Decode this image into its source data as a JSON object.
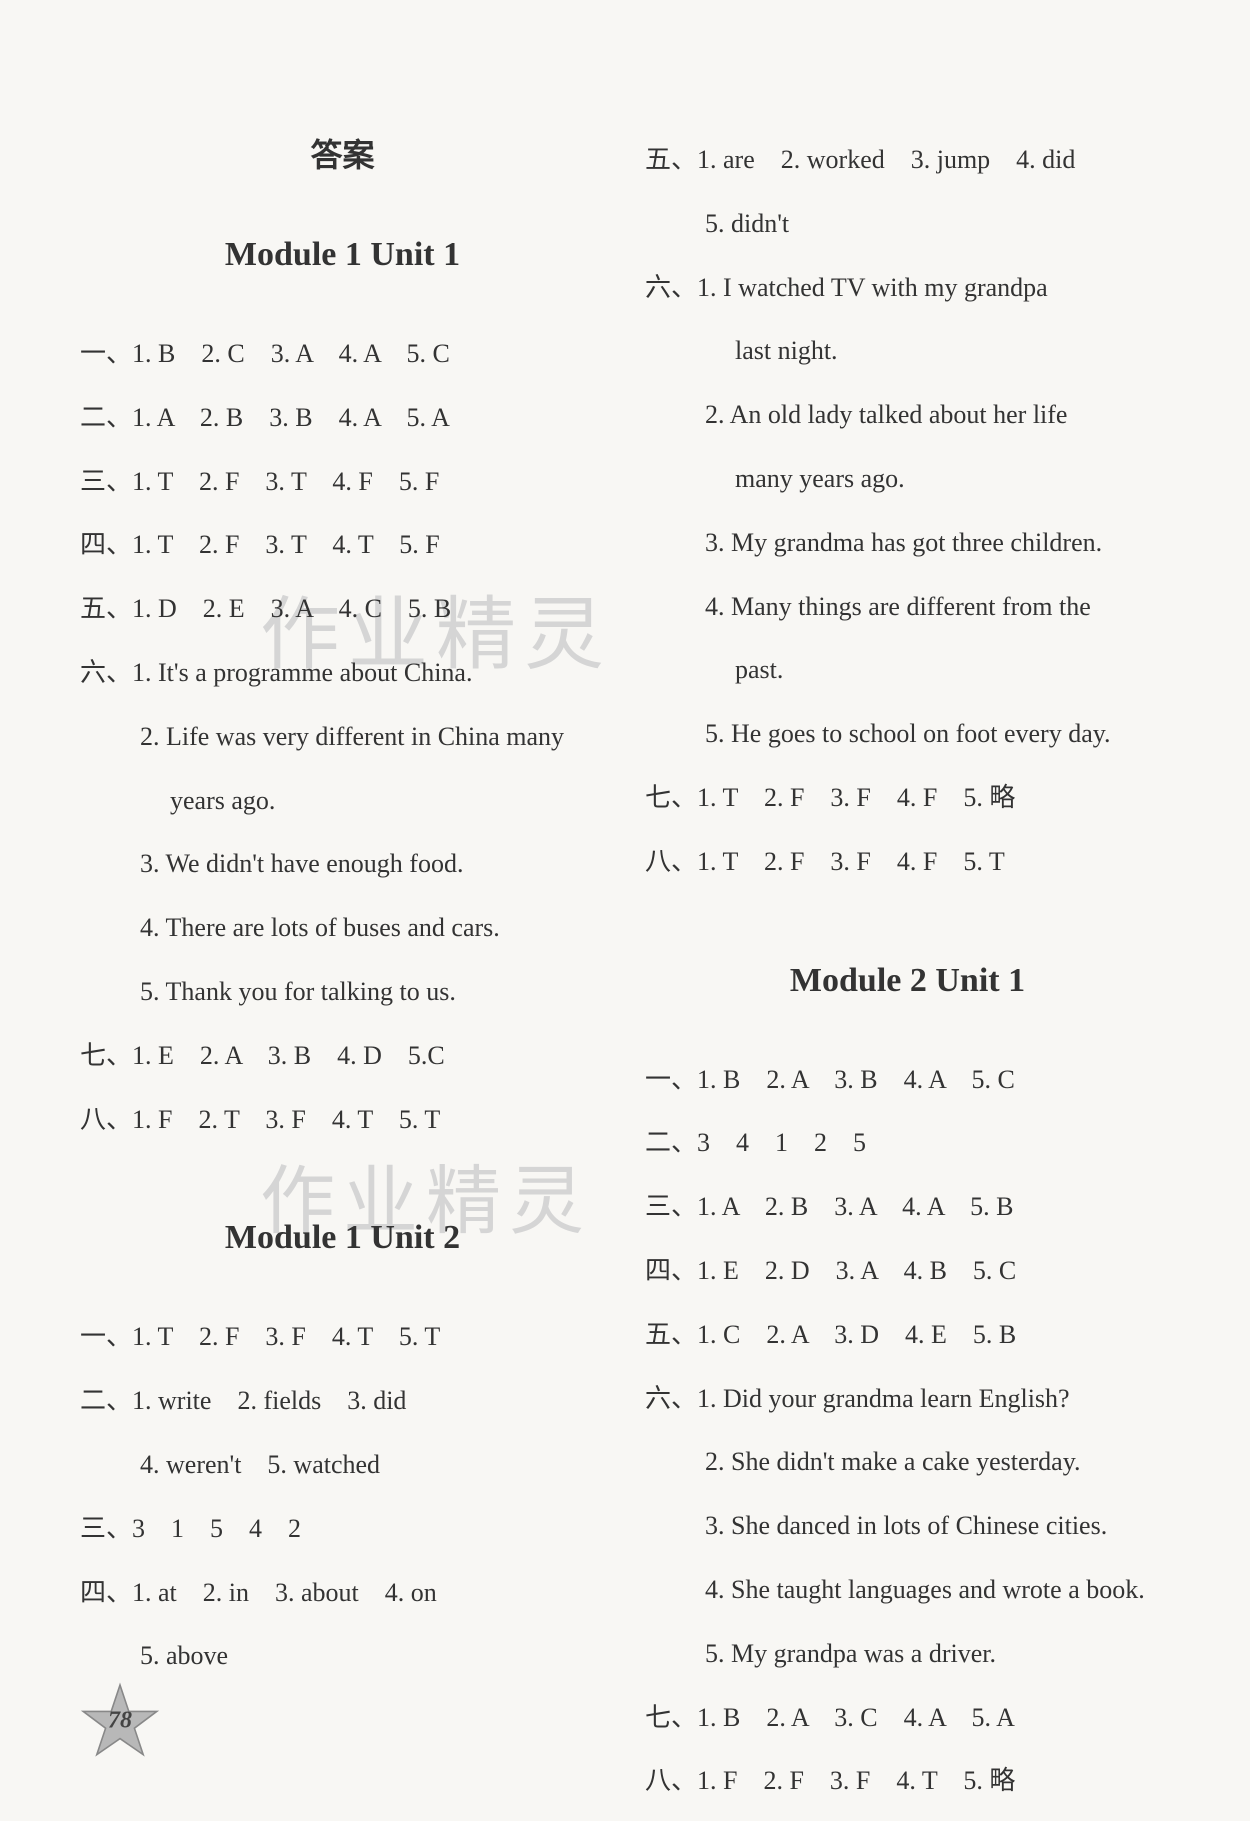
{
  "page_title": "答案",
  "page_number": "78",
  "watermark_text": "作业精灵",
  "modules": {
    "m1u1": {
      "title": "Module 1 Unit 1",
      "rows": [
        {
          "label": "一、",
          "text": "1. B　2. C　3. A　4. A　5. C"
        },
        {
          "label": "二、",
          "text": "1. A　2. B　3. B　4. A　5. A"
        },
        {
          "label": "三、",
          "text": "1. T　2. F　3. T　4. F　5. F"
        },
        {
          "label": "四、",
          "text": "1. T　2. F　3. T　4. T　5. F"
        },
        {
          "label": "五、",
          "text": "1. D　2. E　3. A　4. C　5. B"
        },
        {
          "label": "六、",
          "text": "1. It's a programme about China."
        },
        {
          "label": "",
          "text": "2. Life was very different in China many",
          "indent": true
        },
        {
          "label": "",
          "text": "years ago.",
          "indent": true,
          "deep": true
        },
        {
          "label": "",
          "text": "3. We didn't have enough food.",
          "indent": true
        },
        {
          "label": "",
          "text": "4. There are lots of buses and cars.",
          "indent": true
        },
        {
          "label": "",
          "text": "5. Thank you for talking to us.",
          "indent": true
        },
        {
          "label": "七、",
          "text": "1. E　2. A　3. B　4. D　5.C"
        },
        {
          "label": "八、",
          "text": "1. F　2. T　3. F　4. T　5. T"
        }
      ]
    },
    "m1u2": {
      "title": "Module 1 Unit 2",
      "rows": [
        {
          "label": "一、",
          "text": "1. T　2. F　3. F　4. T　5. T"
        },
        {
          "label": "二、",
          "text": "1. write　2. fields　3. did"
        },
        {
          "label": "",
          "text": "4. weren't　5. watched",
          "indent": true
        },
        {
          "label": "三、",
          "text": "3　1　5　4　2"
        },
        {
          "label": "四、",
          "text": "1. at　2. in　3. about　4. on"
        },
        {
          "label": "",
          "text": "5. above",
          "indent": true
        }
      ]
    },
    "m1u2_right": {
      "rows": [
        {
          "label": "五、",
          "text": "1. are　2. worked　3. jump　4. did"
        },
        {
          "label": "",
          "text": "5. didn't",
          "indent": true
        },
        {
          "label": "六、",
          "text": "1. I watched TV with my grandpa"
        },
        {
          "label": "",
          "text": "last night.",
          "indent": true,
          "deep": true
        },
        {
          "label": "",
          "text": "2. An old lady talked about her life",
          "indent": true
        },
        {
          "label": "",
          "text": "many years ago.",
          "indent": true,
          "deep": true
        },
        {
          "label": "",
          "text": "3. My grandma has got three children.",
          "indent": true
        },
        {
          "label": "",
          "text": "4. Many things are different from the",
          "indent": true
        },
        {
          "label": "",
          "text": "past.",
          "indent": true,
          "deep": true
        },
        {
          "label": "",
          "text": "5. He goes to school on foot every day.",
          "indent": true
        },
        {
          "label": "七、",
          "text": "1. T　2. F　3. F　4. F　5. 略"
        },
        {
          "label": "八、",
          "text": "1. T　2. F　3. F　4. F　5. T"
        }
      ]
    },
    "m2u1": {
      "title": "Module 2 Unit 1",
      "rows": [
        {
          "label": "一、",
          "text": "1. B　2. A　3. B　4. A　5. C"
        },
        {
          "label": "二、",
          "text": "3　4　1　2　5"
        },
        {
          "label": "三、",
          "text": "1. A　2. B　3. A　4. A　5. B"
        },
        {
          "label": "四、",
          "text": "1. E　2. D　3. A　4. B　5. C"
        },
        {
          "label": "五、",
          "text": "1. C　2. A　3. D　4. E　5. B"
        },
        {
          "label": "六、",
          "text": "1. Did your grandma learn English?"
        },
        {
          "label": "",
          "text": "2. She didn't make a cake yesterday.",
          "indent": true
        },
        {
          "label": "",
          "text": "3. She danced in lots of Chinese cities.",
          "indent": true
        },
        {
          "label": "",
          "text": "4. She taught languages and wrote a book.",
          "indent": true
        },
        {
          "label": "",
          "text": "5. My grandpa was a driver.",
          "indent": true
        },
        {
          "label": "七、",
          "text": "1. B　2. A　3. C　4. A　5. A"
        },
        {
          "label": "八、",
          "text": "1. F　2. F　3. F　4. T　5. 略"
        }
      ]
    }
  }
}
